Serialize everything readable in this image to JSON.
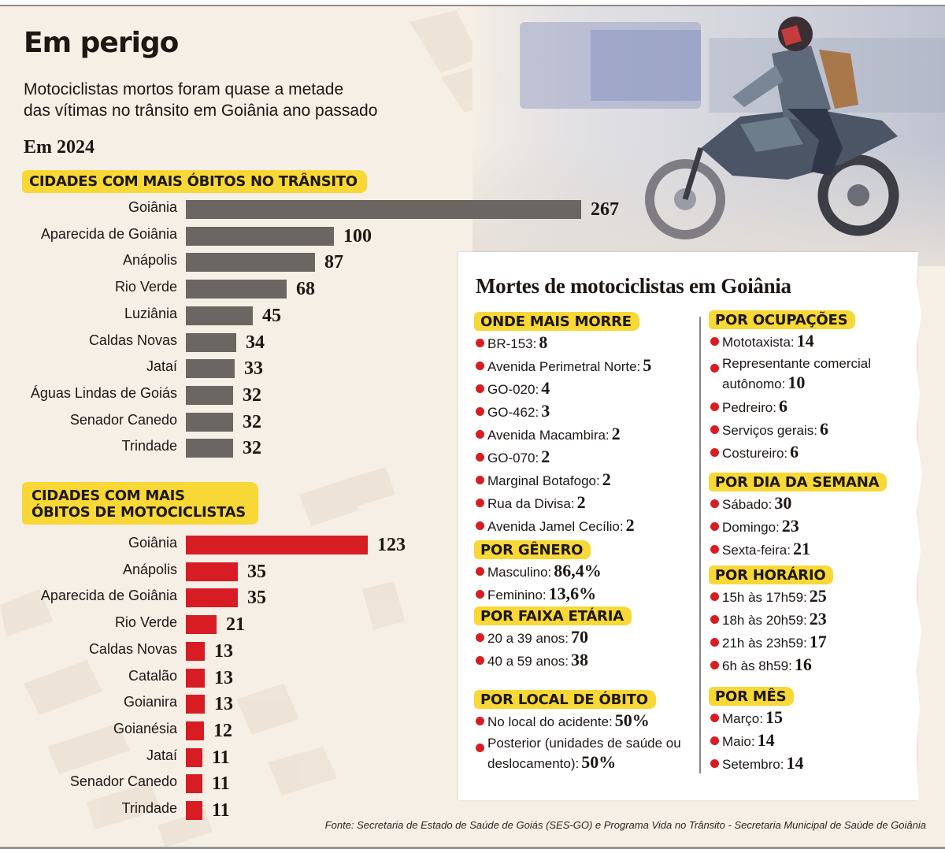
{
  "header": {
    "title": "Em perigo",
    "subtitle_line1": "Motociclistas mortos foram quase a metade",
    "subtitle_line2": "das vítimas no trânsito em Goiânia ano passado",
    "year_label": "Em 2024"
  },
  "colors": {
    "background": "#f6efe6",
    "highlight_yellow": "#f7d836",
    "bar_grey": "#6b6661",
    "bar_red": "#d71d23",
    "bullet_red": "#d71d23",
    "text_dark": "#1d1714"
  },
  "chart_data": [
    {
      "type": "bar",
      "orientation": "horizontal",
      "title": "CIDADES COM MAIS ÓBITOS NO TRÂNSITO",
      "categories": [
        "Goiânia",
        "Aparecida de Goiânia",
        "Anápolis",
        "Rio Verde",
        "Luziânia",
        "Caldas Novas",
        "Jataí",
        "Águas Lindas de Goiás",
        "Senador Canedo",
        "Trindade"
      ],
      "values": [
        267,
        100,
        87,
        68,
        45,
        34,
        33,
        32,
        32,
        32
      ],
      "value_labels": [
        "267",
        "100",
        "87",
        "68",
        "45",
        "34",
        "33",
        "32",
        "32",
        "32"
      ],
      "xlim": [
        0,
        267
      ],
      "grid": false,
      "data_labels": "end"
    },
    {
      "type": "bar",
      "orientation": "horizontal",
      "title_line1": "CIDADES COM MAIS",
      "title_line2": "ÓBITOS DE MOTOCICLISTAS",
      "categories": [
        "Goiânia",
        "Anápolis",
        "Aparecida de Goiânia",
        "Rio Verde",
        "Caldas Novas",
        "Catalão",
        "Goianira",
        "Goianésia",
        "Jataí",
        "Senador Canedo",
        "Trindade"
      ],
      "values": [
        123,
        35,
        35,
        21,
        13,
        13,
        13,
        12,
        11,
        11,
        11
      ],
      "value_labels": [
        "123",
        "35",
        "35",
        "21",
        "13",
        "13",
        "13",
        "12",
        "11",
        "11",
        "11"
      ],
      "xlim": [
        0,
        267
      ],
      "grid": false,
      "data_labels": "end"
    }
  ],
  "card": {
    "title": "Mortes de motociclistas em Goiânia",
    "left_sections": [
      {
        "heading": "ONDE MAIS MORRE",
        "items": [
          {
            "label": "BR-153:",
            "value": "8"
          },
          {
            "label": "Avenida Perimetral Norte:",
            "value": "5"
          },
          {
            "label": "GO-020:",
            "value": "4"
          },
          {
            "label": "GO-462:",
            "value": "3"
          },
          {
            "label": "Avenida Macambira:",
            "value": "2"
          },
          {
            "label": "GO-070:",
            "value": "2"
          },
          {
            "label": "Marginal Botafogo:",
            "value": "2"
          },
          {
            "label": "Rua da Divisa:",
            "value": "2"
          },
          {
            "label": "Avenida Jamel Cecílio:",
            "value": "2"
          }
        ]
      },
      {
        "heading": "POR GÊNERO",
        "items": [
          {
            "label": "Masculino:",
            "value": "86,4%"
          },
          {
            "label": "Feminino:",
            "value": "13,6%"
          }
        ]
      },
      {
        "heading": "POR FAIXA ETÁRIA",
        "items": [
          {
            "label": "20 a 39 anos:",
            "value": "70"
          },
          {
            "label": "40 a 59 anos:",
            "value": "38"
          }
        ]
      },
      {
        "heading": "POR LOCAL DE ÓBITO",
        "items": [
          {
            "label": "No local do acidente:",
            "value": "50%"
          },
          {
            "label": "Posterior (unidades de saúde ou deslocamento):",
            "value": "50%"
          }
        ]
      }
    ],
    "right_sections": [
      {
        "heading": "POR OCUPAÇÕES",
        "items": [
          {
            "label": "Mototaxista:",
            "value": "14"
          },
          {
            "label": "Representante comercial autônomo:",
            "value": "10"
          },
          {
            "label": "Pedreiro:",
            "value": "6"
          },
          {
            "label": "Serviços gerais:",
            "value": "6"
          },
          {
            "label": "Costureiro:",
            "value": "6"
          }
        ]
      },
      {
        "heading": "POR DIA DA SEMANA",
        "items": [
          {
            "label": "Sábado:",
            "value": "30"
          },
          {
            "label": "Domingo:",
            "value": "23"
          },
          {
            "label": "Sexta-feira:",
            "value": "21"
          }
        ]
      },
      {
        "heading": "POR HORÁRIO",
        "items": [
          {
            "label": "15h às 17h59:",
            "value": "25"
          },
          {
            "label": "18h às 20h59:",
            "value": "23"
          },
          {
            "label": "21h às 23h59:",
            "value": "17"
          },
          {
            "label": "6h às 8h59:",
            "value": "16"
          }
        ]
      },
      {
        "heading": "POR MÊS",
        "items": [
          {
            "label": "Março:",
            "value": "15"
          },
          {
            "label": "Maio:",
            "value": "14"
          },
          {
            "label": "Setembro:",
            "value": "14"
          }
        ]
      }
    ]
  },
  "source": "Fonte: Secretaria de Estado de Saúde de Goiás (SES-GO) e Programa Vida no Trânsito - Secretaria Municipal de Saúde de Goiânia"
}
